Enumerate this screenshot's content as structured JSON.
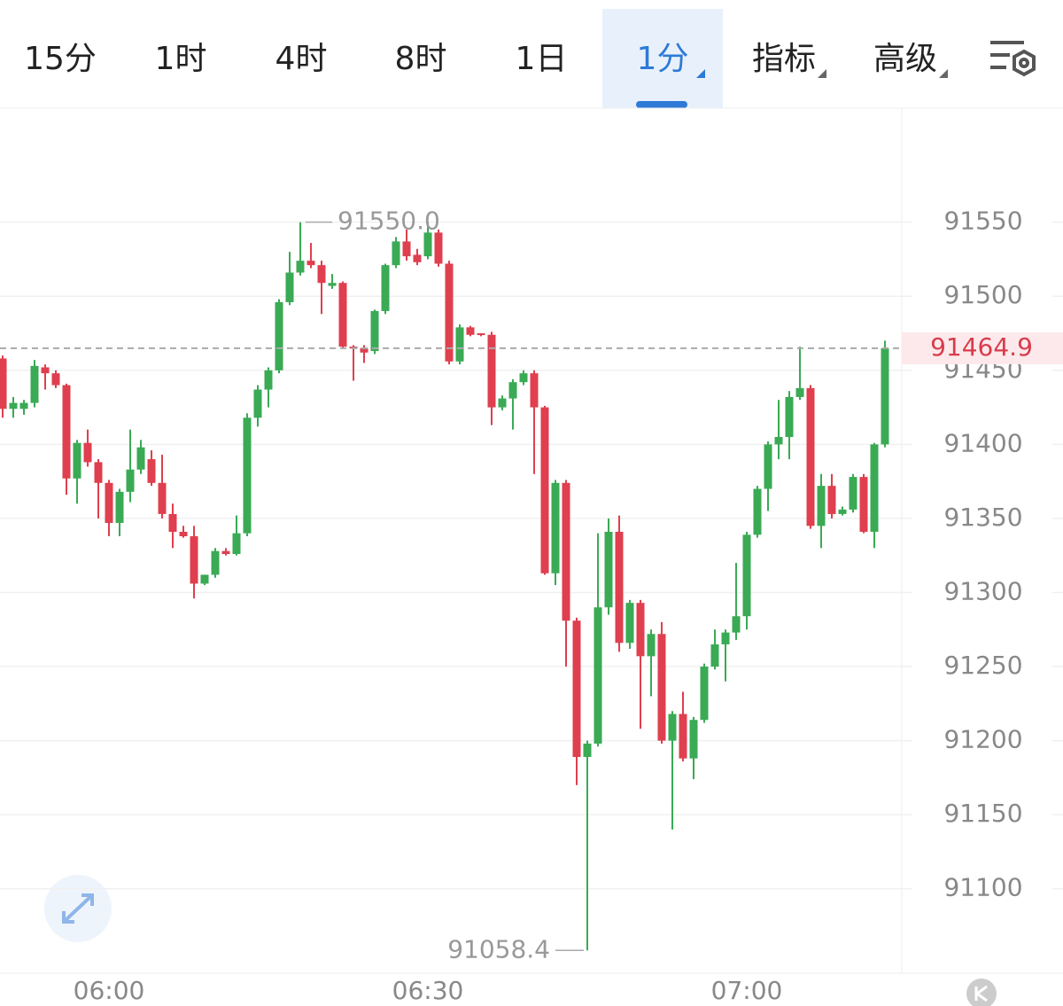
{
  "tabs": [
    "15分",
    "1时",
    "4时",
    "8时",
    "1日",
    "1分",
    "指标",
    "高级"
  ],
  "selected_tab": 5,
  "chart_data": {
    "type": "candlestick",
    "categories": [
      null,
      null,
      null,
      null,
      null,
      null,
      null,
      null,
      null,
      null,
      "06:00",
      null,
      null,
      null,
      null,
      null,
      null,
      null,
      null,
      null,
      null,
      null,
      null,
      null,
      null,
      null,
      null,
      null,
      null,
      null,
      null,
      null,
      null,
      null,
      null,
      null,
      null,
      null,
      null,
      null,
      "06:30",
      null,
      null,
      null,
      null,
      null,
      null,
      null,
      null,
      null,
      null,
      null,
      null,
      null,
      null,
      null,
      null,
      null,
      null,
      null,
      null,
      null,
      null,
      null,
      null,
      null,
      null,
      null,
      null,
      null,
      "07:00",
      null,
      null,
      null,
      null,
      null,
      null,
      null,
      null,
      null,
      null,
      null,
      null,
      null
    ],
    "open": [
      91458,
      91424,
      91424,
      91428,
      91452,
      91448,
      91440,
      91377,
      91401,
      91388,
      91374,
      91347,
      91368,
      91383,
      91390,
      91374,
      91353,
      91341,
      91338,
      91306,
      91312,
      91328,
      91326,
      91340,
      91418,
      91437,
      91450,
      91496,
      91516,
      91524,
      91521,
      91507,
      91509,
      91466,
      91465,
      91463,
      91490,
      91521,
      91537,
      91528,
      91527,
      91543,
      91522,
      91456,
      91479,
      91475,
      91474,
      91425,
      91431,
      91442,
      91448,
      91425,
      91313,
      91374,
      91281,
      91189,
      91198,
      91290,
      91341,
      91266,
      91293,
      91257,
      91272,
      91200,
      91218,
      91188,
      91214,
      91250,
      91265,
      91273,
      91284,
      91339,
      91370,
      91400,
      91405,
      91432,
      91438,
      91345,
      91372,
      91353,
      91356,
      91378,
      91341,
      91400
    ],
    "high": [
      91460,
      91432,
      91430,
      91457,
      91454,
      91450,
      91441,
      91403,
      91410,
      91390,
      91376,
      91370,
      91410,
      91403,
      91396,
      91393,
      91360,
      91345,
      91345,
      91312,
      91330,
      91330,
      91352,
      91421,
      91440,
      91452,
      91498,
      91530,
      91550,
      91536,
      91524,
      91515,
      91510,
      91467,
      91467,
      91491,
      91522,
      91540,
      91545,
      91532,
      91550,
      91545,
      91524,
      91481,
      91480,
      91475,
      91476,
      91433,
      91444,
      91450,
      91450,
      91426,
      91376,
      91376,
      91283,
      91200,
      91340,
      91350,
      91352,
      91295,
      91295,
      91275,
      91280,
      91220,
      91233,
      91216,
      91252,
      91275,
      91275,
      91320,
      91341,
      91372,
      91402,
      91430,
      91436,
      91466,
      91440,
      91380,
      91380,
      91358,
      91380,
      91380,
      91401,
      91470
    ],
    "low": [
      91418,
      91418,
      91420,
      91425,
      91437,
      91438,
      91366,
      91360,
      91385,
      91350,
      91338,
      91338,
      91361,
      91380,
      91372,
      91350,
      91330,
      91337,
      91296,
      91305,
      91310,
      91325,
      91325,
      91338,
      91412,
      91425,
      91448,
      91494,
      91514,
      91519,
      91488,
      91505,
      91465,
      91443,
      91455,
      91461,
      91488,
      91519,
      91524,
      91521,
      91525,
      91520,
      91454,
      91454,
      91473,
      91473,
      91413,
      91423,
      91410,
      91440,
      91380,
      91312,
      91305,
      91250,
      91170,
      91058.4,
      91196,
      91285,
      91260,
      91262,
      91208,
      91230,
      91198,
      91140,
      91186,
      91174,
      91212,
      91248,
      91240,
      91268,
      91275,
      91337,
      91355,
      91390,
      91390,
      91430,
      91343,
      91330,
      91350,
      91352,
      91354,
      91340,
      91330,
      91398
    ],
    "close": [
      91424,
      91428,
      91428,
      91453,
      91448,
      91440,
      91377,
      91401,
      91388,
      91374,
      91347,
      91368,
      91383,
      91398,
      91374,
      91353,
      91341,
      91338,
      91306,
      91312,
      91328,
      91326,
      91340,
      91418,
      91437,
      91450,
      91496,
      91516,
      91524,
      91521,
      91509,
      91509,
      91466,
      91465,
      91462,
      91490,
      91521,
      91537,
      91527,
      91523,
      91543,
      91522,
      91456,
      91479,
      91474,
      91474,
      91425,
      91431,
      91442,
      91448,
      91425,
      91313,
      91374,
      91281,
      91189,
      91198,
      91290,
      91341,
      91266,
      91293,
      91257,
      91272,
      91200,
      91218,
      91188,
      91214,
      91250,
      91265,
      91273,
      91284,
      91339,
      91370,
      91400,
      91405,
      91432,
      91438,
      91345,
      91372,
      91353,
      91356,
      91378,
      91341,
      91400,
      91464.9
    ],
    "up_color": "#3aaa55",
    "down_color": "#df3f4e",
    "ylim": [
      91043,
      91627
    ],
    "yticks": [
      91100,
      91150,
      91200,
      91250,
      91300,
      91350,
      91400,
      91450,
      91500,
      91550
    ],
    "grid": true,
    "high_marker": {
      "value": 91550,
      "label": "91550.0"
    },
    "low_marker": {
      "value": 91058.4,
      "label": "91058.4"
    },
    "last_price": {
      "value": 91464.9,
      "label": "91464.9"
    }
  }
}
